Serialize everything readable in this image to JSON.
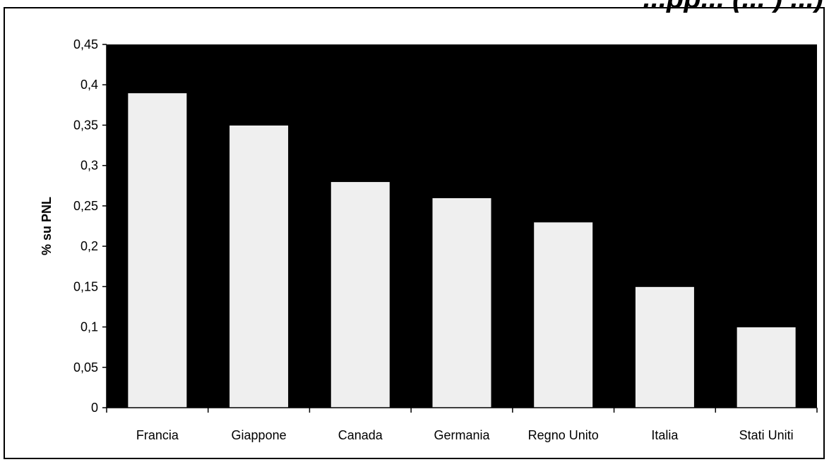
{
  "chart_data": {
    "type": "bar",
    "title": "...pp... (... ) ...)",
    "categories": [
      "Francia",
      "Giappone",
      "Canada",
      "Germania",
      "Regno Unito",
      "Italia",
      "Stati Uniti"
    ],
    "values": [
      0.39,
      0.35,
      0.28,
      0.26,
      0.23,
      0.15,
      0.1
    ],
    "ylabel": "% su PNL",
    "xlabel": "",
    "ylim": [
      0,
      0.45
    ],
    "yticks": [
      "0",
      "0,05",
      "0,1",
      "0,15",
      "0,2",
      "0,25",
      "0,3",
      "0,35",
      "0,4",
      "0,45"
    ],
    "grid": false,
    "colors": {
      "plot_background": "#000000",
      "bar_fill": "#efefef"
    }
  }
}
